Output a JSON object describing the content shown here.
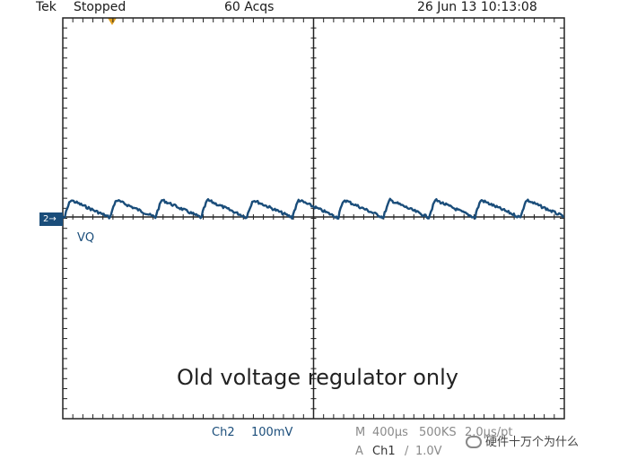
{
  "header": {
    "brand": "Tek",
    "status": "Stopped",
    "acquisitions": "60 Acqs",
    "datetime": "26 Jun 13 10:13:08"
  },
  "channel": {
    "marker": "2",
    "label": "VQ",
    "color": "#1a4d7a"
  },
  "caption": "Old voltage regulator only",
  "footer": {
    "ch_name": "Ch2",
    "ch_scale": "100mV",
    "m_prefix": "M",
    "timebase": "400µs",
    "sample_rate": "500KS",
    "point_spacing": "2.0µs/pt",
    "a_prefix": "A",
    "trigger_source": "Ch1",
    "trigger_slope": "/",
    "trigger_level": "1.0V"
  },
  "watermark": "硬件十万个为什么",
  "trace": {
    "ripple_periods": 11,
    "shape": "sawtooth"
  }
}
